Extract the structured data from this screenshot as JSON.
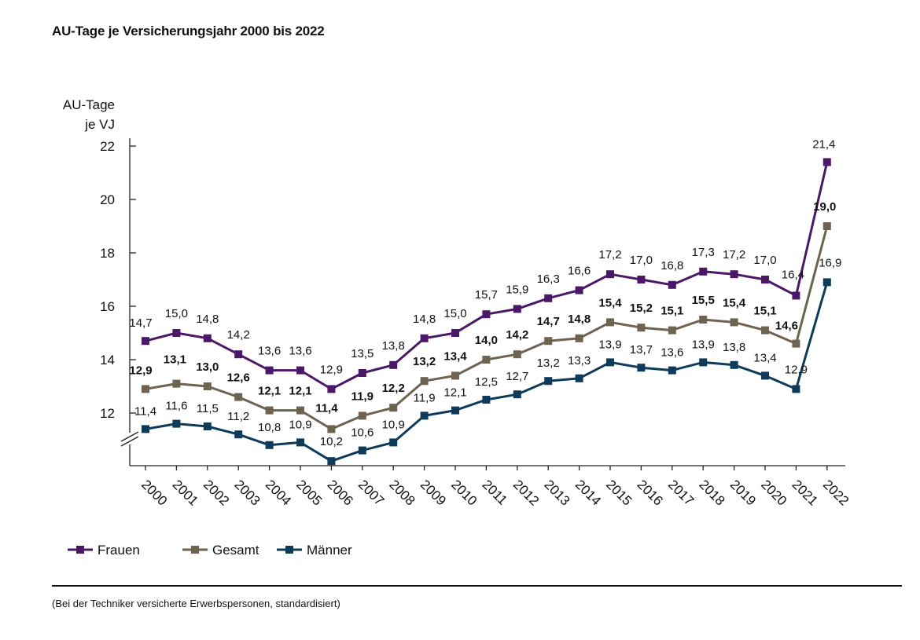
{
  "chart_data": {
    "type": "line",
    "title": "AU-Tage je Versicherungsjahr 2000 bis 2022",
    "ylabel": [
      "AU-Tage",
      "je VJ"
    ],
    "xlabel": "",
    "ylim": [
      10,
      22
    ],
    "yticks": [
      12,
      14,
      16,
      18,
      20,
      22
    ],
    "axis_break": true,
    "categories": [
      "2000",
      "2001",
      "2002",
      "2003",
      "2004",
      "2005",
      "2006",
      "2007",
      "2008",
      "2009",
      "2010",
      "2011",
      "2012",
      "2013",
      "2014",
      "2015",
      "2016",
      "2017",
      "2018",
      "2019",
      "2020",
      "2021",
      "2022"
    ],
    "series": [
      {
        "name": "Frauen",
        "color": "#4b1868",
        "label_bold": false,
        "values": [
          14.7,
          15.0,
          14.8,
          14.2,
          13.6,
          13.6,
          12.9,
          13.5,
          13.8,
          14.8,
          15.0,
          15.7,
          15.9,
          16.3,
          16.6,
          17.2,
          17.0,
          16.8,
          17.3,
          17.2,
          17.0,
          16.4,
          21.4
        ],
        "labels": [
          "14,7",
          "15,0",
          "14,8",
          "14,2",
          "13,6",
          "13,6",
          "12,9",
          "13,5",
          "13,8",
          "14,8",
          "15,0",
          "15,7",
          "15,9",
          "16,3",
          "16,6",
          "17,2",
          "17,0",
          "16,8",
          "17,3",
          "17,2",
          "17,0",
          "16,4",
          "21,4"
        ]
      },
      {
        "name": "Gesamt",
        "color": "#6e6251",
        "label_bold": true,
        "values": [
          12.9,
          13.1,
          13.0,
          12.6,
          12.1,
          12.1,
          11.4,
          11.9,
          12.2,
          13.2,
          13.4,
          14.0,
          14.2,
          14.7,
          14.8,
          15.4,
          15.2,
          15.1,
          15.5,
          15.4,
          15.1,
          14.6,
          19.0
        ],
        "labels": [
          "12,9",
          "13,1",
          "13,0",
          "12,6",
          "12,1",
          "12,1",
          "11,4",
          "11,9",
          "12,2",
          "13,2",
          "13,4",
          "14,0",
          "14,2",
          "14,7",
          "14,8",
          "15,4",
          "15,2",
          "15,1",
          "15,5",
          "15,4",
          "15,1",
          "14,6",
          "19,0"
        ]
      },
      {
        "name": "Männer",
        "color": "#0e3b5a",
        "label_bold": false,
        "values": [
          11.4,
          11.6,
          11.5,
          11.2,
          10.8,
          10.9,
          10.2,
          10.6,
          10.9,
          11.9,
          12.1,
          12.5,
          12.7,
          13.2,
          13.3,
          13.9,
          13.7,
          13.6,
          13.9,
          13.8,
          13.4,
          12.9,
          16.9
        ],
        "labels": [
          "11,4",
          "11,6",
          "11,5",
          "11,2",
          "10,8",
          "10,9",
          "10,2",
          "10,6",
          "10,9",
          "11,9",
          "12,1",
          "12,5",
          "12,7",
          "13,2",
          "13,3",
          "13,9",
          "13,7",
          "13,6",
          "13,9",
          "13,8",
          "13,4",
          "12,9",
          "16,9"
        ]
      }
    ],
    "legend": {
      "placement": "bottom-left"
    }
  },
  "footnote": "(Bei der Techniker versicherte Erwerbspersonen, standardisiert)"
}
